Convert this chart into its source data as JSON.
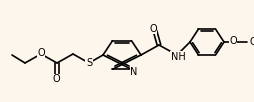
{
  "bg_color": "#fdf6ec",
  "bond_color": "#000000",
  "lw": 1.2,
  "fs": 7.0,
  "figsize": [
    2.55,
    1.02
  ],
  "dpi": 100,
  "xlim": [
    0,
    255
  ],
  "ylim": [
    0,
    102
  ]
}
